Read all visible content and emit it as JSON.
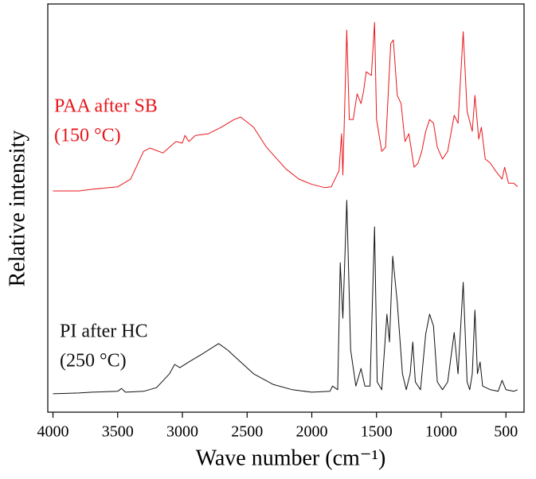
{
  "chart_data": {
    "type": "line",
    "x_label": "Wave number (cm⁻¹)",
    "y_label": "Relative intensity",
    "xlim": [
      4040,
      360
    ],
    "ylim": [
      0,
      100
    ],
    "xticks": [
      4000,
      3500,
      3000,
      2500,
      2000,
      1500,
      1000,
      500
    ],
    "series": [
      {
        "label": [
          "PAA after SB",
          "(150 °C)"
        ],
        "color": "#e8161b",
        "x": [
          4000,
          3800,
          3700,
          3500,
          3400,
          3300,
          3250,
          3150,
          3050,
          3000,
          2980,
          2950,
          2900,
          2800,
          2700,
          2600,
          2550,
          2450,
          2350,
          2200,
          2100,
          2000,
          1900,
          1850,
          1790,
          1770,
          1760,
          1730,
          1710,
          1680,
          1650,
          1620,
          1600,
          1580,
          1540,
          1515,
          1500,
          1460,
          1430,
          1390,
          1370,
          1340,
          1310,
          1280,
          1250,
          1210,
          1180,
          1150,
          1120,
          1090,
          1060,
          1030,
          990,
          950,
          900,
          870,
          830,
          800,
          760,
          740,
          710,
          690,
          660,
          620,
          580,
          530,
          510,
          480,
          440,
          410
        ],
        "values": [
          54.2,
          54.2,
          54.6,
          55.2,
          57.1,
          63.9,
          64.7,
          63.5,
          66.3,
          65.9,
          67.8,
          66.3,
          67.8,
          68.2,
          69.8,
          71.7,
          72.3,
          69.8,
          64.9,
          59.6,
          57.1,
          55.8,
          55.0,
          55.2,
          59.1,
          68.2,
          58.1,
          93.6,
          71.7,
          71.7,
          78.0,
          75.6,
          78.6,
          83.4,
          82.5,
          95.5,
          71.7,
          63.9,
          64.9,
          90.3,
          91.2,
          77.6,
          75.6,
          66.3,
          68.2,
          60.0,
          61.0,
          63.9,
          68.8,
          71.7,
          70.8,
          64.9,
          62.0,
          63.9,
          72.7,
          70.8,
          93.2,
          73.7,
          68.8,
          77.6,
          66.9,
          69.8,
          62.0,
          61.0,
          59.1,
          57.1,
          60.0,
          56.1,
          56.1,
          55.2
        ]
      },
      {
        "label": [
          "PI after HC",
          "(250 °C)"
        ],
        "color": "#111111",
        "x": [
          4000,
          3800,
          3700,
          3500,
          3470,
          3440,
          3300,
          3200,
          3100,
          3060,
          3020,
          2950,
          2850,
          2750,
          2720,
          2650,
          2550,
          2450,
          2300,
          2150,
          2000,
          1860,
          1840,
          1800,
          1780,
          1760,
          1730,
          1700,
          1660,
          1620,
          1590,
          1550,
          1515,
          1495,
          1460,
          1420,
          1400,
          1375,
          1340,
          1300,
          1270,
          1240,
          1220,
          1200,
          1160,
          1120,
          1090,
          1060,
          1030,
          990,
          950,
          900,
          870,
          830,
          800,
          780,
          760,
          740,
          720,
          700,
          680,
          620,
          560,
          530,
          500,
          440,
          410
        ],
        "values": [
          4.5,
          4.7,
          4.9,
          5.1,
          5.8,
          4.9,
          5.1,
          6.0,
          9.4,
          11.7,
          10.9,
          12.3,
          14.2,
          16.2,
          16.8,
          15.2,
          12.3,
          9.4,
          6.8,
          5.5,
          4.9,
          5.1,
          6.4,
          5.5,
          36.6,
          23.0,
          51.9,
          15.2,
          6.4,
          10.7,
          6.4,
          6.4,
          45.4,
          7.4,
          5.5,
          24.0,
          17.2,
          38.2,
          26.9,
          9.4,
          5.5,
          9.4,
          17.2,
          7.4,
          5.5,
          19.1,
          24.0,
          21.1,
          7.4,
          5.5,
          7.4,
          19.5,
          9.4,
          31.8,
          7.4,
          5.5,
          9.4,
          25.0,
          9.4,
          12.3,
          6.4,
          5.5,
          5.1,
          7.8,
          5.5,
          5.1,
          5.5
        ]
      }
    ]
  }
}
